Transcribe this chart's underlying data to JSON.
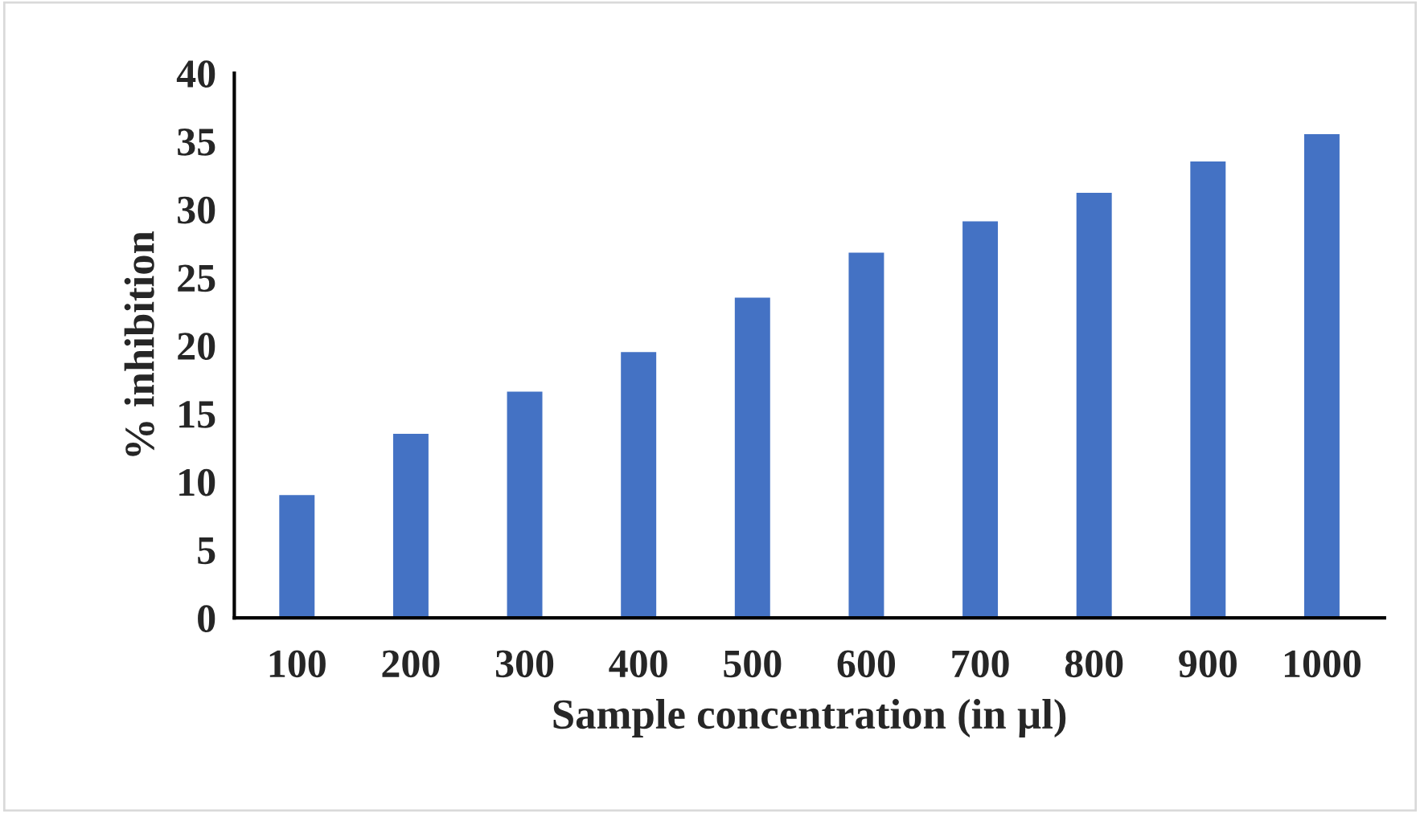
{
  "chart_data": {
    "type": "bar",
    "xlabel": "Sample concentration (in µl)",
    "ylabel": "% inhibition",
    "categories": [
      "100",
      "200",
      "300",
      "400",
      "500",
      "600",
      "700",
      "800",
      "900",
      "1000"
    ],
    "values": [
      9.1,
      13.6,
      16.7,
      19.6,
      23.6,
      26.9,
      29.2,
      31.3,
      33.6,
      35.6
    ],
    "color": "#4472c4",
    "ylim": [
      0,
      40
    ],
    "yticks": [
      0,
      5,
      10,
      15,
      20,
      25,
      30,
      35,
      40
    ],
    "grid": false,
    "legend": false
  }
}
